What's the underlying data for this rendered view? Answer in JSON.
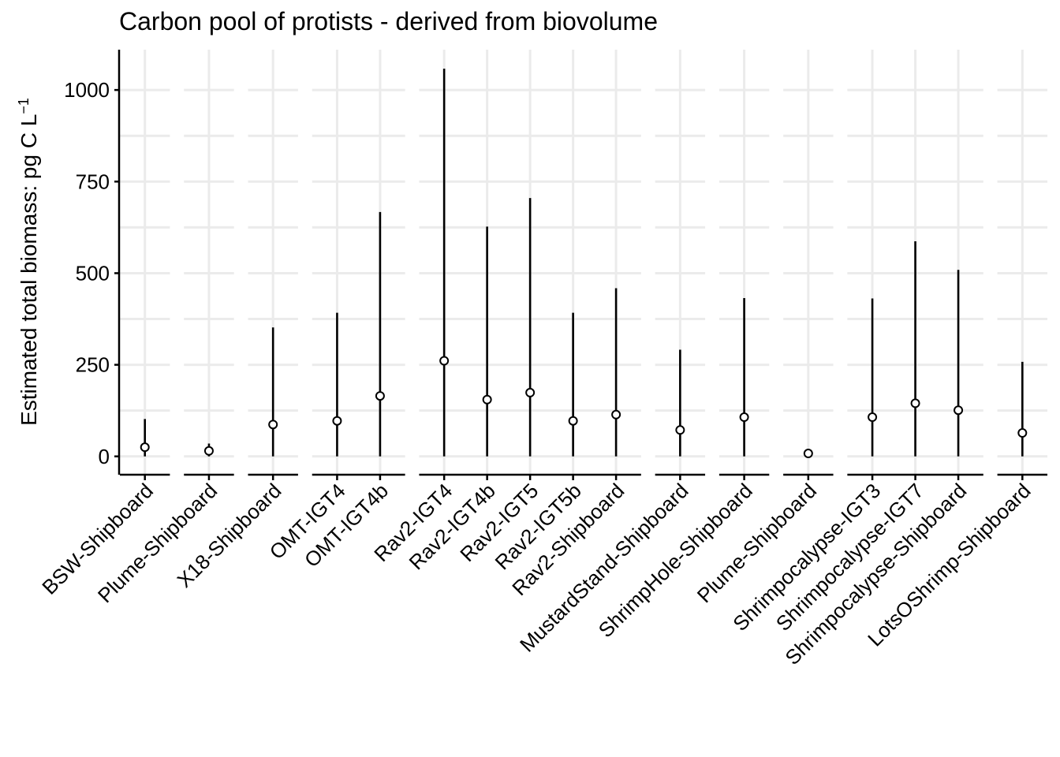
{
  "chart_data": {
    "type": "scatter",
    "title": "Carbon pool of protists - derived from biovolume",
    "ylabel": "Estimated total biomass: pg C  L",
    "ylabel_exponent": "−1",
    "ylim": [
      -50,
      1110
    ],
    "yticks": [
      0,
      250,
      500,
      750,
      1000
    ],
    "grid": true,
    "legend": "none",
    "panels": [
      {
        "points": [
          {
            "label": "BSW-Shipboard",
            "value": 25,
            "min": 0,
            "max": 102
          }
        ]
      },
      {
        "points": [
          {
            "label": "Plume-Shipboard",
            "value": 15,
            "min": 0,
            "max": 35
          }
        ]
      },
      {
        "points": [
          {
            "label": "X18-Shipboard",
            "value": 87,
            "min": 0,
            "max": 352
          }
        ]
      },
      {
        "points": [
          {
            "label": "OMT-IGT4",
            "value": 97,
            "min": 0,
            "max": 392
          },
          {
            "label": "OMT-IGT4b",
            "value": 165,
            "min": 0,
            "max": 667
          }
        ]
      },
      {
        "points": [
          {
            "label": "Rav2-IGT4",
            "value": 261,
            "min": 0,
            "max": 1058
          },
          {
            "label": "Rav2-IGT4b",
            "value": 155,
            "min": 0,
            "max": 627
          },
          {
            "label": "Rav2-IGT5",
            "value": 174,
            "min": 0,
            "max": 705
          },
          {
            "label": "Rav2-IGT5b",
            "value": 97,
            "min": 0,
            "max": 392
          },
          {
            "label": "Rav2-Shipboard",
            "value": 114,
            "min": 0,
            "max": 459
          }
        ]
      },
      {
        "points": [
          {
            "label": "MustardStand-Shipboard",
            "value": 72,
            "min": 0,
            "max": 291
          }
        ]
      },
      {
        "points": [
          {
            "label": "ShrimpHole-Shipboard",
            "value": 107,
            "min": 0,
            "max": 432
          }
        ]
      },
      {
        "points": [
          {
            "label": "Plume-Shipboard",
            "value": 8,
            "min": 0,
            "max": 12
          }
        ]
      },
      {
        "points": [
          {
            "label": "Shrimpocalypse-IGT3",
            "value": 107,
            "min": 0,
            "max": 431
          },
          {
            "label": "Shrimpocalypse-IGT7",
            "value": 145,
            "min": 0,
            "max": 587
          },
          {
            "label": "Shrimpocalypse-Shipboard",
            "value": 126,
            "min": 0,
            "max": 509
          }
        ]
      },
      {
        "points": [
          {
            "label": "LotsOShrimp-Shipboard",
            "value": 64,
            "min": 0,
            "max": 258
          }
        ]
      }
    ]
  }
}
